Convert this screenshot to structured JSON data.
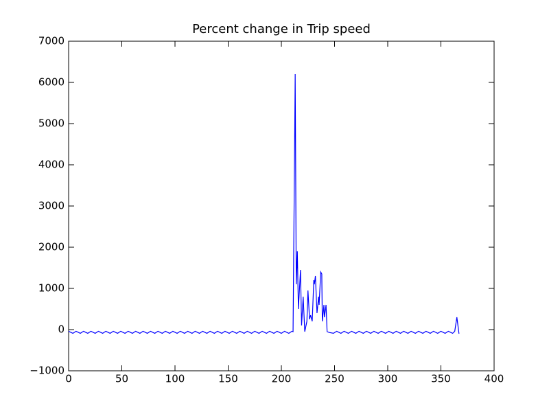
{
  "chart_data": {
    "type": "line",
    "title": "Percent change in Trip speed",
    "x": [
      0,
      4,
      7,
      11,
      14,
      18,
      21,
      25,
      28,
      32,
      35,
      39,
      42,
      46,
      49,
      53,
      56,
      60,
      63,
      67,
      70,
      74,
      77,
      81,
      84,
      88,
      91,
      95,
      98,
      102,
      105,
      109,
      112,
      116,
      119,
      123,
      126,
      130,
      133,
      137,
      140,
      144,
      147,
      151,
      154,
      158,
      161,
      165,
      168,
      172,
      175,
      179,
      182,
      186,
      189,
      193,
      196,
      200,
      203,
      207,
      210,
      211,
      213,
      214,
      215,
      216,
      218,
      219,
      220.5,
      222,
      224,
      225,
      226.5,
      227.5,
      229,
      230.5,
      231,
      232,
      233.5,
      235,
      235.5,
      237,
      238,
      238.5,
      240,
      240.5,
      242,
      243,
      245,
      249,
      252,
      256,
      259,
      263,
      266,
      270,
      273,
      277,
      280,
      284,
      287,
      291,
      294,
      298,
      301,
      305,
      308,
      312,
      315,
      319,
      322,
      326,
      329,
      333,
      336,
      340,
      343,
      347,
      350,
      354,
      357,
      361,
      363,
      365,
      367
    ],
    "series": [
      {
        "color": "#0000ff",
        "values": [
          -40,
          -90,
          -40,
          -90,
          -40,
          -90,
          -40,
          -90,
          -40,
          -90,
          -40,
          -90,
          -40,
          -90,
          -40,
          -90,
          -40,
          -90,
          -40,
          -90,
          -40,
          -90,
          -40,
          -90,
          -40,
          -90,
          -40,
          -90,
          -40,
          -90,
          -40,
          -90,
          -40,
          -90,
          -40,
          -90,
          -40,
          -90,
          -40,
          -90,
          -40,
          -90,
          -40,
          -90,
          -40,
          -90,
          -40,
          -90,
          -40,
          -90,
          -40,
          -90,
          -40,
          -90,
          -40,
          -90,
          -40,
          -90,
          -40,
          -90,
          -40,
          -50,
          6200,
          1100,
          1900,
          500,
          1450,
          100,
          800,
          -50,
          200,
          950,
          250,
          350,
          200,
          1200,
          1100,
          1300,
          400,
          800,
          600,
          1400,
          1350,
          200,
          600,
          300,
          600,
          -50,
          -70,
          -90,
          -40,
          -90,
          -40,
          -90,
          -40,
          -90,
          -40,
          -90,
          -40,
          -90,
          -40,
          -90,
          -40,
          -90,
          -40,
          -90,
          -40,
          -90,
          -40,
          -90,
          -40,
          -90,
          -40,
          -90,
          -40,
          -90,
          -40,
          -90,
          -40,
          -90,
          -40,
          -90,
          -40,
          300,
          -100
        ]
      }
    ],
    "xlim": [
      0,
      400
    ],
    "xticks": [
      0,
      50,
      100,
      150,
      200,
      250,
      300,
      350,
      400
    ],
    "ylim": [
      -1000,
      7000
    ],
    "yticks": [
      {
        "value": -1000,
        "label": "−1000"
      },
      0,
      1000,
      2000,
      3000,
      4000,
      5000,
      6000,
      7000
    ]
  }
}
